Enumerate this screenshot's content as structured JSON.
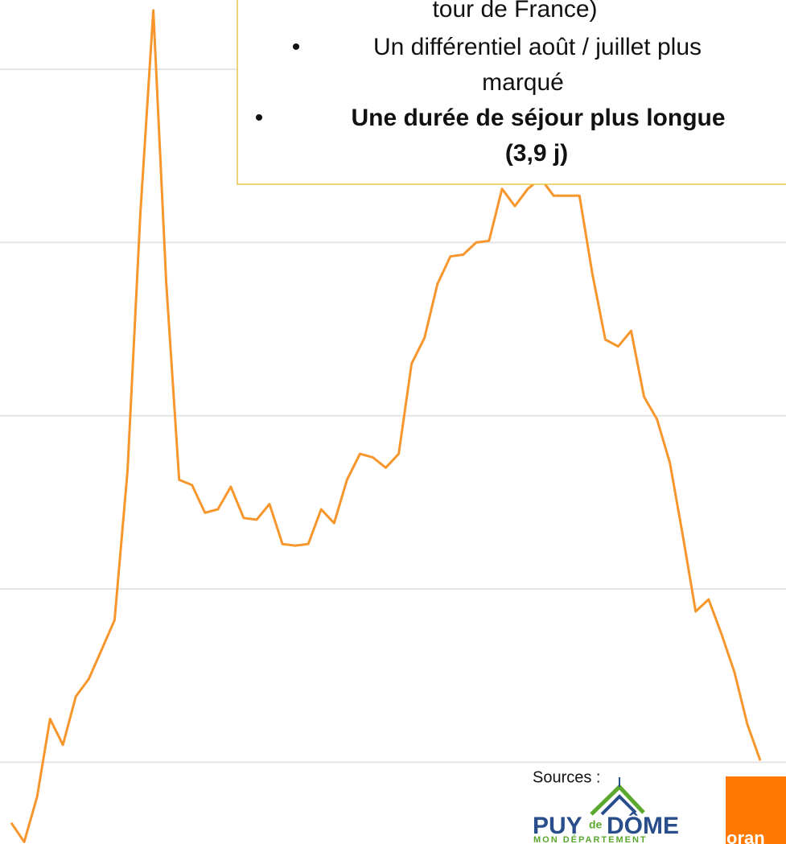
{
  "chart_data": {
    "type": "line",
    "color": "#f7962c",
    "values": [
      0.65,
      0.54,
      0.8,
      1.25,
      1.1,
      1.38,
      1.48,
      1.65,
      1.82,
      2.68,
      4.17,
      5.34,
      3.77,
      2.63,
      2.6,
      2.44,
      2.46,
      2.59,
      2.41,
      2.4,
      2.49,
      2.26,
      2.25,
      2.26,
      2.46,
      2.38,
      2.63,
      2.78,
      2.76,
      2.7,
      2.78,
      3.3,
      3.45,
      3.76,
      3.92,
      3.93,
      4.0,
      4.01,
      4.31,
      4.21,
      4.31,
      4.37,
      4.27,
      4.27,
      4.27,
      3.82,
      3.44,
      3.4,
      3.49,
      3.11,
      2.98,
      2.73,
      2.31,
      1.87,
      1.94,
      1.74,
      1.52,
      1.22,
      1.01
    ],
    "ylim": [
      0.5,
      5.4
    ],
    "yticks": [
      1,
      2,
      3,
      4,
      5
    ],
    "grid": true
  },
  "text_box": {
    "lines": [
      "tour de France)",
      "Un différentiel août / juillet plus",
      "marqué",
      "Une durée de séjour plus longue",
      "(3,9 j)"
    ]
  },
  "sources": "Sources :",
  "logo": {
    "part1": "PUY",
    "part2": "de",
    "part3": "DÔME",
    "subtitle": "MON DÉPARTEMENT"
  },
  "orange_label": "oran"
}
